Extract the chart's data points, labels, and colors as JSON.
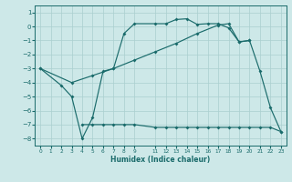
{
  "xlabel": "Humidex (Indice chaleur)",
  "bg_color": "#cde8e8",
  "grid_color": "#aacfcf",
  "line_color": "#1a6b6b",
  "xlim": [
    -0.5,
    23.5
  ],
  "ylim": [
    -8.5,
    1.5
  ],
  "yticks": [
    1,
    0,
    -1,
    -2,
    -3,
    -4,
    -5,
    -6,
    -7,
    -8
  ],
  "xtick_vals": [
    0,
    1,
    2,
    3,
    4,
    5,
    6,
    7,
    8,
    9,
    11,
    12,
    13,
    14,
    15,
    16,
    17,
    18,
    19,
    20,
    21,
    22,
    23
  ],
  "curve1_x": [
    0,
    2,
    3,
    4,
    5,
    6,
    7,
    8,
    9,
    11,
    12,
    13,
    14,
    15,
    16,
    17,
    18,
    19,
    20,
    21,
    22,
    23
  ],
  "curve1_y": [
    -3.0,
    -4.2,
    -5.0,
    -8.0,
    -6.5,
    -3.2,
    -3.0,
    -0.5,
    0.2,
    0.2,
    0.2,
    0.5,
    0.55,
    0.15,
    0.2,
    0.2,
    -0.1,
    -1.1,
    -1.0,
    -3.2,
    -5.8,
    -7.5
  ],
  "curve2_x": [
    0,
    3,
    5,
    7,
    9,
    11,
    13,
    15,
    17,
    18,
    19,
    20
  ],
  "curve2_y": [
    -3.0,
    -4.0,
    -3.5,
    -3.0,
    -2.4,
    -1.8,
    -1.2,
    -0.5,
    0.1,
    0.2,
    -1.1,
    -1.0
  ],
  "curve3_x": [
    4,
    5,
    6,
    7,
    8,
    9,
    11,
    12,
    13,
    14,
    15,
    16,
    17,
    18,
    19,
    20,
    21,
    22,
    23
  ],
  "curve3_y": [
    -7.0,
    -7.0,
    -7.0,
    -7.0,
    -7.0,
    -7.0,
    -7.2,
    -7.2,
    -7.2,
    -7.2,
    -7.2,
    -7.2,
    -7.2,
    -7.2,
    -7.2,
    -7.2,
    -7.2,
    -7.2,
    -7.5
  ]
}
